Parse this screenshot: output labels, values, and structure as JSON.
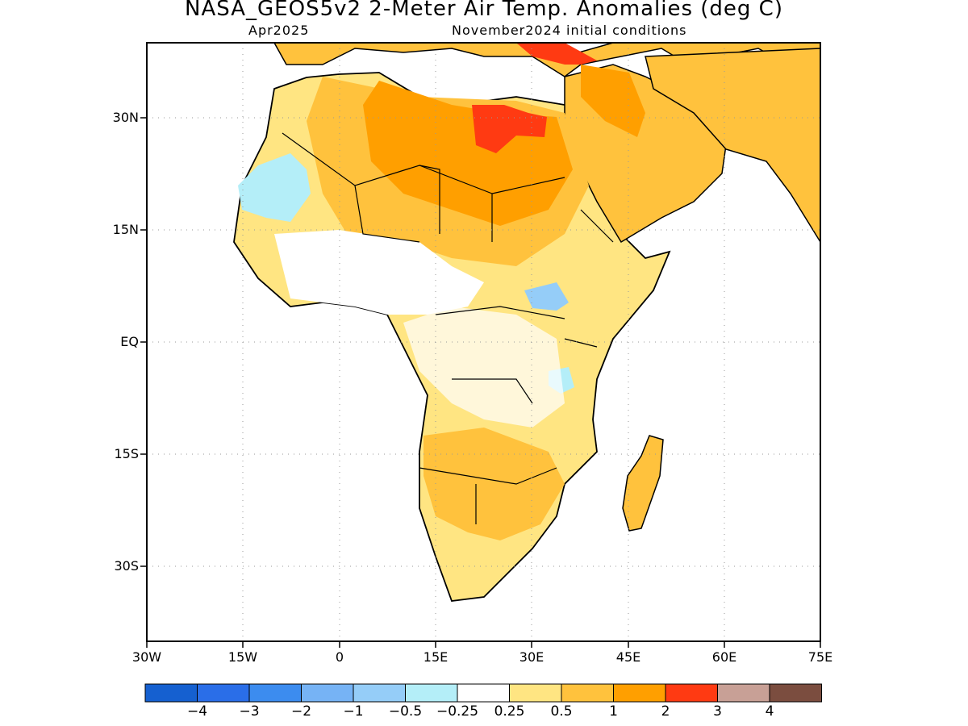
{
  "header": {
    "title": "NASA_GEOS5v2 2-Meter Air Temp. Anomalies (deg C)",
    "period": "Apr2025",
    "init": "November2024 initial conditions"
  },
  "map": {
    "lat_ticks": [
      "30N",
      "15N",
      "EQ",
      "15S",
      "30S"
    ],
    "lon_ticks": [
      "30W",
      "15W",
      "0",
      "15E",
      "30E",
      "45E",
      "60E",
      "75E"
    ],
    "lat_range": [
      -40,
      40
    ],
    "lon_range": [
      -30,
      75
    ],
    "grid": true
  },
  "colorbar": {
    "colors": [
      "#1560d0",
      "#2a6ee8",
      "#3c8cef",
      "#76b3f5",
      "#95cdf8",
      "#b4eef8",
      "#ffffff",
      "#ffe582",
      "#ffc23d",
      "#ff9f00",
      "#ff3a12",
      "#c8a096",
      "#7b4d3f"
    ],
    "labels": [
      "-4",
      "-3",
      "-2",
      "-1",
      "-0.5",
      "-0.25",
      "0.25",
      "0.5",
      "1",
      "2",
      "3",
      "4"
    ]
  }
}
